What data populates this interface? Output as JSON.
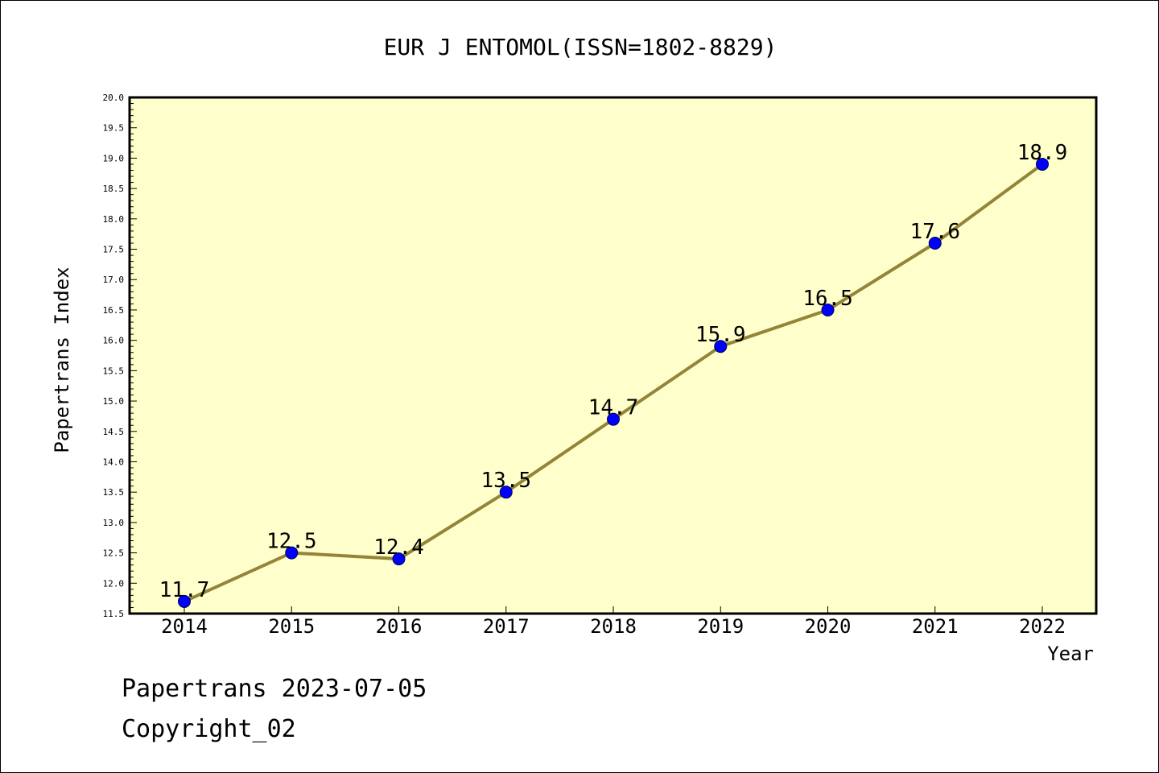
{
  "chart_data": {
    "type": "line",
    "title": "EUR J ENTOMOL(ISSN=1802-8829)",
    "xlabel": "Year",
    "ylabel": "Papertrans Index",
    "categories": [
      "2014",
      "2015",
      "2016",
      "2017",
      "2018",
      "2019",
      "2020",
      "2021",
      "2022"
    ],
    "series": [
      {
        "values": [
          11.7,
          12.5,
          12.4,
          13.5,
          14.7,
          15.9,
          16.5,
          17.6,
          18.9
        ]
      }
    ],
    "data_labels": [
      "11.7",
      "12.5",
      "12.4",
      "13.5",
      "14.7",
      "15.9",
      "16.5",
      "17.6",
      "18.9"
    ],
    "ylim": [
      11.5,
      20.0
    ],
    "yticks": [
      "11.5",
      "12.0",
      "12.5",
      "13.0",
      "13.5",
      "14.0",
      "14.5",
      "15.0",
      "15.5",
      "16.0",
      "16.5",
      "17.0",
      "17.5",
      "18.0",
      "18.5",
      "19.0",
      "19.5",
      "20.0"
    ],
    "grid": false,
    "colors": {
      "plot_background": "#ffffcc",
      "line": "#948437",
      "marker": "#0000ff"
    }
  },
  "footer": {
    "line1": "Papertrans 2023-07-05",
    "line2": "Copyright_02"
  }
}
